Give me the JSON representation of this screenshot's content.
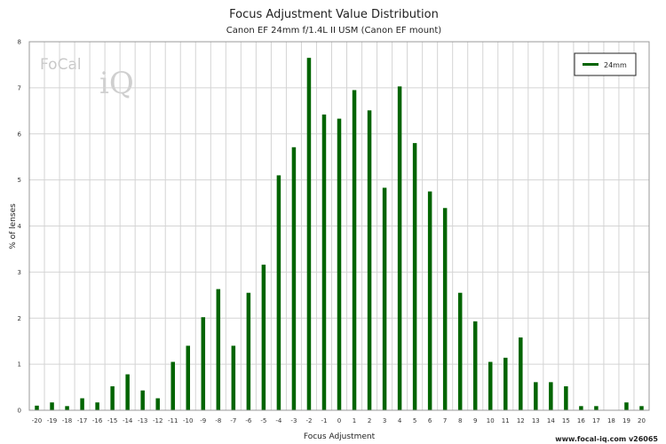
{
  "chart_data": {
    "type": "bar",
    "title": "Focus Adjustment Value Distribution",
    "subtitle": "Canon EF 24mm f/1.4L II USM (Canon EF mount)",
    "xlabel": "Focus Adjustment",
    "ylabel": "% of lenses",
    "ylim": [
      0,
      8
    ],
    "yticks": [
      "0",
      "1",
      "2",
      "3",
      "4",
      "5",
      "6",
      "7",
      "8"
    ],
    "grid": true,
    "legend_position": "top-right",
    "categories": [
      "-20",
      "-19",
      "-18",
      "-17",
      "-16",
      "-15",
      "-14",
      "-13",
      "-12",
      "-11",
      "-10",
      "-9",
      "-8",
      "-7",
      "-6",
      "-5",
      "-4",
      "-3",
      "-2",
      "-1",
      "0",
      "1",
      "2",
      "3",
      "4",
      "5",
      "6",
      "7",
      "8",
      "9",
      "10",
      "11",
      "12",
      "13",
      "14",
      "15",
      "16",
      "17",
      "18",
      "19",
      "20"
    ],
    "series": [
      {
        "name": "24mm",
        "color": "#006400",
        "values": [
          0.1,
          0.17,
          0.09,
          0.26,
          0.17,
          0.52,
          0.78,
          0.43,
          0.26,
          1.05,
          1.4,
          2.02,
          2.63,
          1.4,
          2.55,
          3.16,
          5.1,
          5.71,
          7.65,
          6.42,
          6.33,
          6.95,
          6.51,
          4.83,
          7.03,
          5.8,
          4.75,
          4.39,
          2.55,
          1.93,
          1.05,
          1.14,
          1.58,
          0.61,
          0.61,
          0.52,
          0.09,
          0.09,
          0,
          0.17,
          0.09
        ]
      }
    ]
  },
  "logo": {
    "text": "FoCal",
    "mark": "iQ"
  },
  "footer": {
    "text": "www.focal-iq.com  v26065"
  }
}
